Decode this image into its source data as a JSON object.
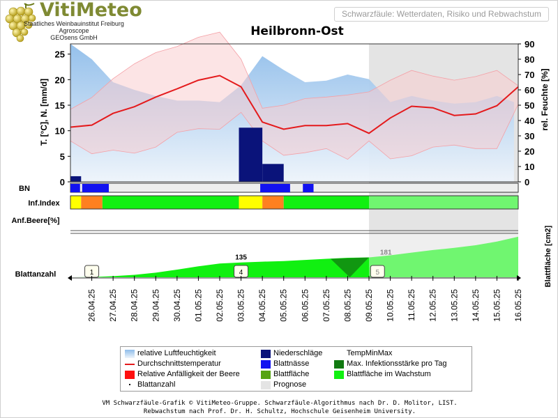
{
  "logo": {
    "name": "VitiMeteo",
    "sub": [
      "Staatliches Weinbauinstitut Freiburg",
      "Agroscope",
      "GEOsens GmbH"
    ],
    "icon": "grape-cluster-icon"
  },
  "header_box": "Schwarzfäule: Wetterdaten, Risiko und Rebwachstum",
  "colors": {
    "humidity": "#a8ccf0",
    "temp": "#e41a1c",
    "tempband": "#f9c9cc",
    "rain": "#0a137a",
    "leafwet": "#1212f0",
    "green": "#11f011",
    "darkgreen": "#117a11",
    "orange": "#ff8020",
    "yellow": "#ffff00",
    "forecast": "#e4e4e4"
  },
  "chart_data": {
    "type": "line",
    "title": "Heilbronn-Ost",
    "ylabel_left": "T. [°C], N. [mm/d]",
    "ylabel_right": "rel. Feuchte [%]",
    "ylabel_right2": "Blattfläche [cm2]",
    "ylim_left": [
      0,
      27
    ],
    "ylim_right": [
      0,
      90
    ],
    "yticks_left": [
      0,
      5,
      10,
      15,
      20,
      25
    ],
    "yticks_right": [
      0,
      10,
      20,
      30,
      40,
      50,
      60,
      70,
      80,
      90
    ],
    "x_start": 25.0,
    "x_end": 46.0,
    "dates": [
      "26.04.25",
      "27.04.25",
      "28.04.25",
      "29.04.25",
      "30.04.25",
      "01.05.25",
      "02.05.25",
      "03.05.25",
      "04.05.25",
      "05.05.25",
      "06.05.25",
      "07.05.25",
      "08.05.25",
      "09.05.25",
      "10.05.25",
      "11.05.25",
      "12.05.25",
      "13.05.25",
      "14.05.25",
      "15.05.25",
      "16.05.25"
    ],
    "forecast_from": 39.0,
    "humidity": {
      "name": "relative Luftfeuchtigkeit",
      "x": [
        25,
        26,
        27,
        28,
        29,
        30,
        31,
        32,
        33,
        34,
        35,
        36,
        37,
        38,
        39,
        40,
        41,
        42,
        43,
        44,
        45,
        45.8
      ],
      "y": [
        90,
        80,
        65,
        60,
        56,
        53,
        53,
        52,
        63,
        82,
        73,
        65,
        66,
        70,
        67,
        52,
        56,
        53,
        51,
        52,
        56,
        52
      ]
    },
    "temp_mean": {
      "name": "Durchschnittstemperatur",
      "x": [
        25,
        26,
        27,
        28,
        29,
        30,
        31,
        32,
        33,
        34,
        35,
        36,
        37,
        38,
        39,
        40,
        41,
        42,
        43,
        44,
        45,
        46
      ],
      "y": [
        10.7,
        11.1,
        13.4,
        14.7,
        16.6,
        18.2,
        19.9,
        20.8,
        18.6,
        11.7,
        10.3,
        11.0,
        11.0,
        11.4,
        9.5,
        12.5,
        14.8,
        14.5,
        13.0,
        13.3,
        14.9,
        18.6
      ]
    },
    "temp_max": {
      "x": [
        25,
        26,
        27,
        28,
        29,
        30,
        31,
        32,
        33,
        34,
        35,
        36,
        37,
        38,
        39,
        40,
        41,
        42,
        43,
        44,
        45,
        46
      ],
      "y": [
        14.2,
        16.5,
        20.2,
        23.1,
        25.3,
        26.5,
        28.3,
        29.3,
        24.0,
        14.4,
        15.0,
        16.3,
        16.6,
        17.0,
        17.6,
        19.9,
        21.8,
        20.7,
        19.9,
        20.6,
        21.8,
        18.8
      ]
    },
    "temp_min": {
      "x": [
        25,
        26,
        27,
        28,
        29,
        30,
        31,
        32,
        33,
        34,
        35,
        36,
        37,
        38,
        39,
        40,
        41,
        42,
        43,
        44,
        45,
        46
      ],
      "y": [
        8.0,
        5.5,
        6.2,
        5.6,
        6.8,
        9.7,
        10.4,
        10.3,
        13.6,
        8.0,
        5.2,
        5.7,
        6.5,
        4.4,
        8.0,
        4.5,
        5.1,
        6.8,
        7.2,
        6.5,
        6.5,
        15.2
      ]
    },
    "rain": {
      "name": "Niederschläge",
      "bars": [
        {
          "x0": 25.0,
          "x1": 25.5,
          "y": 1.1
        },
        {
          "x0": 32.9,
          "x1": 34.0,
          "y": 10.6
        },
        {
          "x0": 34.0,
          "x1": 35.0,
          "y": 3.5
        }
      ]
    },
    "bn_name": "Blattnässe",
    "bn_label": "BN",
    "bn_segments": [
      {
        "x0": 25.0,
        "x1": 25.45,
        "c": "#1212f0"
      },
      {
        "x0": 25.55,
        "x1": 26.8,
        "c": "#1212f0"
      },
      {
        "x0": 33.9,
        "x1": 35.3,
        "c": "#1212f0"
      },
      {
        "x0": 35.9,
        "x1": 36.4,
        "c": "#1212f0"
      }
    ],
    "inf_label": "Inf.Index",
    "inf_segments": [
      {
        "x0": 25.0,
        "x1": 25.5,
        "c": "#ffff00"
      },
      {
        "x0": 25.5,
        "x1": 26.5,
        "c": "#ff8020"
      },
      {
        "x0": 26.5,
        "x1": 32.9,
        "c": "#11f011"
      },
      {
        "x0": 32.9,
        "x1": 34.0,
        "c": "#ffff00"
      },
      {
        "x0": 34.0,
        "x1": 35.0,
        "c": "#ff8020"
      },
      {
        "x0": 35.0,
        "x1": 46.0,
        "c": "#11f011"
      }
    ],
    "anf_label": "Anf.Beere[%]",
    "leaf_label": "Blattanzahl",
    "leaf_area": {
      "name": "Blattfläche im Wachstum",
      "ylim": [
        0,
        400
      ],
      "x": [
        25,
        26,
        27,
        28,
        29,
        30,
        31,
        32,
        33,
        34,
        35,
        36,
        37,
        38,
        39,
        40,
        41,
        42,
        43,
        44,
        45,
        46
      ],
      "y": [
        0,
        2,
        10,
        22,
        42,
        70,
        100,
        125,
        135,
        142,
        148,
        158,
        168,
        178,
        181,
        200,
        225,
        248,
        268,
        292,
        325,
        370
      ]
    },
    "leaf_counts": [
      {
        "x": 26.0,
        "label": "1"
      },
      {
        "x": 33.0,
        "label": "4"
      },
      {
        "x": 39.4,
        "label": "5"
      }
    ],
    "leaf_value_labels": [
      {
        "x": 33.0,
        "value": "135"
      },
      {
        "x": 39.4,
        "value": "181"
      }
    ]
  },
  "legend": [
    {
      "label": "relative Luftfeuchtigkeit",
      "swatch": "gradient"
    },
    {
      "label": "Niederschläge",
      "swatch": "#0a137a"
    },
    {
      "label": "TempMinMax",
      "swatch": "none"
    },
    {
      "label": "Durchschnittstemperatur",
      "swatch": "line"
    },
    {
      "label": "Blattnässe",
      "swatch": "#1212f0"
    },
    {
      "label": "Max. Infektionsstärke pro Tag",
      "swatch": "#117a11"
    },
    {
      "label": "Relative Anfälligkeit der Beere",
      "swatch": "#ff1010"
    },
    {
      "label": "Blattfläche",
      "swatch": "#55a311"
    },
    {
      "label": "Blattfläche im Wachstum",
      "swatch": "#11f011"
    },
    {
      "label": "Blattanzahl",
      "swatch": "dot"
    },
    {
      "label": "Prognose",
      "swatch": "#e4e4e4"
    }
  ],
  "footer": [
    "VM Schwarzfäule-Grafik © VitiMeteo-Gruppe. Schwarzfäule-Algorithmus nach Dr. D. Molitor, LIST.",
    "Rebwachstum nach Prof. Dr. H. Schultz, Hochschule Geisenheim University."
  ]
}
